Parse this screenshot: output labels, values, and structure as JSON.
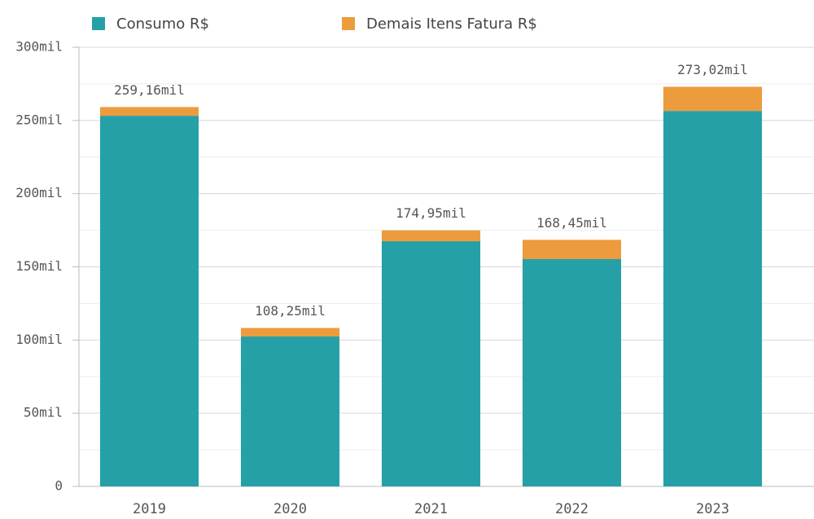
{
  "chart_data": {
    "type": "stacked_bar",
    "categories": [
      "2019",
      "2020",
      "2021",
      "2022",
      "2023"
    ],
    "series": [
      {
        "name": "Consumo R$",
        "color": "#26a0a7",
        "values": [
          253200,
          102400,
          167500,
          155300,
          256500
        ]
      },
      {
        "name": "Demais Itens Fatura R$",
        "color": "#ec9c3c",
        "values": [
          5960,
          5850,
          7450,
          13150,
          16520
        ]
      }
    ],
    "totals": [
      259160,
      108250,
      174950,
      168450,
      273020
    ],
    "total_labels": [
      "259,16mil",
      "108,25mil",
      "174,95mil",
      "168,45mil",
      "273,02mil"
    ],
    "ylim": [
      0,
      300000
    ],
    "yticks": [
      {
        "value": 0,
        "label": "0"
      },
      {
        "value": 50000,
        "label": "50mil"
      },
      {
        "value": 100000,
        "label": "100mil"
      },
      {
        "value": 150000,
        "label": "150mil"
      },
      {
        "value": 200000,
        "label": "200mil"
      },
      {
        "value": 250000,
        "label": "250mil"
      },
      {
        "value": 300000,
        "label": "300mil"
      }
    ],
    "minor_yticks": [
      25000,
      75000,
      125000,
      175000,
      225000,
      275000
    ],
    "grid": true,
    "legend": "top"
  }
}
